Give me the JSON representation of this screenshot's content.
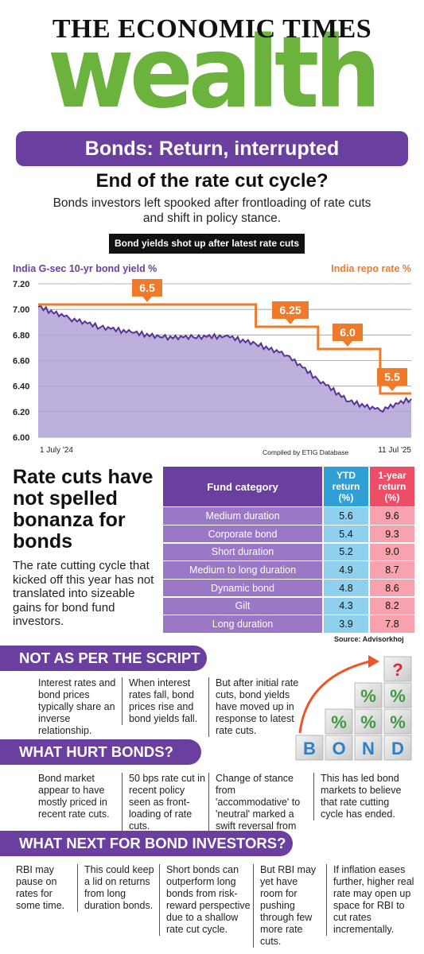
{
  "masthead": {
    "publication": "THE ECONOMIC TIMES",
    "section": "wealth"
  },
  "banner": "Bonds: Return, interrupted",
  "headline": "End of the rate cut cycle?",
  "standfirst": "Bonds investors left spooked after frontloading of rate cuts and shift in policy stance.",
  "chart_tag": "Bond yields shot up after latest rate cuts",
  "colors": {
    "purple": "#6b3fa0",
    "green": "#6cb33e",
    "orange": "#ee7a2a",
    "blue": "#2f9fd6",
    "pink": "#ee4d68"
  },
  "chart_data": {
    "type": "line",
    "series": [
      {
        "name": "India G-sec 10-yr bond yield %",
        "x": [
          "1 July '24",
          "Aug '24",
          "Sep '24",
          "Oct '24",
          "Nov '24",
          "Dec '24",
          "Jan '25",
          "Feb '25",
          "Mar '25",
          "Apr '25",
          "May '25",
          "Jun '25",
          "11 Jul '25"
        ],
        "values": [
          7.02,
          6.93,
          6.86,
          6.82,
          6.78,
          6.78,
          6.79,
          6.73,
          6.64,
          6.45,
          6.28,
          6.21,
          6.3
        ]
      },
      {
        "name": "India repo rate %",
        "steps": [
          {
            "from": "1 July '24",
            "value": 6.5
          },
          {
            "from": "Feb '25",
            "value": 6.25
          },
          {
            "from": "Apr '25",
            "value": 6.0
          },
          {
            "from": "Jun '25",
            "value": 5.5
          }
        ]
      }
    ],
    "left_label": "India G-sec 10-yr bond yield %",
    "right_label": "India repo rate %",
    "y_ticks": [
      "7.20",
      "7.00",
      "6.80",
      "6.60",
      "6.40",
      "6.20",
      "6.00"
    ],
    "ylim": [
      6.0,
      7.2
    ],
    "x_start_label": "1 July '24",
    "x_end_label": "11 Jul '25",
    "repo_labels": [
      "6.5",
      "6.25",
      "6.0",
      "5.5"
    ],
    "source": "Compiled by ETIG Database",
    "grid": true
  },
  "mid": {
    "headline": "Rate cuts have not spelled bonanza for bonds",
    "desc": "The rate cutting cycle that kicked off this year has not translated into sizeable gains for bond fund investors."
  },
  "fund_table": {
    "headers": [
      "Fund category",
      "YTD return (%)",
      "1-year return (%)"
    ],
    "rows": [
      [
        "Medium duration",
        "5.6",
        "9.6"
      ],
      [
        "Corporate bond",
        "5.4",
        "9.3"
      ],
      [
        "Short duration",
        "5.2",
        "9.0"
      ],
      [
        "Medium to long duration",
        "4.9",
        "8.7"
      ],
      [
        "Dynamic bond",
        "4.8",
        "8.6"
      ],
      [
        "Gilt",
        "4.3",
        "8.2"
      ],
      [
        "Long duration",
        "3.9",
        "7.8"
      ]
    ],
    "source": "Source: Advisorkhoj"
  },
  "sections": [
    {
      "title": "NOT AS PER THE SCRIPT",
      "points": [
        "Interest rates and bond prices typically share an inverse relationship.",
        "When interest rates fall, bond prices rise and bond yields fall.",
        "But after initial rate cuts, bond yields have moved up in response to latest rate cuts."
      ]
    },
    {
      "title": "WHAT HURT BONDS?",
      "points": [
        "Bond market appear to have mostly priced in recent rate cuts.",
        "50 bps rate cut in recent policy seen as front-loading of rate cuts.",
        "Change of stance from 'accommodative' to 'neutral' marked a swift reversal from previous stance.",
        "This has led bond markets to believe that rate cutting cycle has ended."
      ]
    },
    {
      "title": "WHAT NEXT FOR BOND INVESTORS?",
      "points": [
        "RBI may pause on rates for some time.",
        "This could keep a lid on returns from long duration bonds.",
        "Short bonds can outperform long bonds from risk-reward perspective due to a shallow rate cut cycle.",
        "But RBI may yet have room for pushing through few more rate cuts.",
        "If inflation eases further, higher real rate may open up space for RBI to cut rates incrementally."
      ]
    }
  ],
  "bond_art": {
    "letters": [
      "B",
      "O",
      "N",
      "D"
    ],
    "percent": "%",
    "question": "?"
  }
}
